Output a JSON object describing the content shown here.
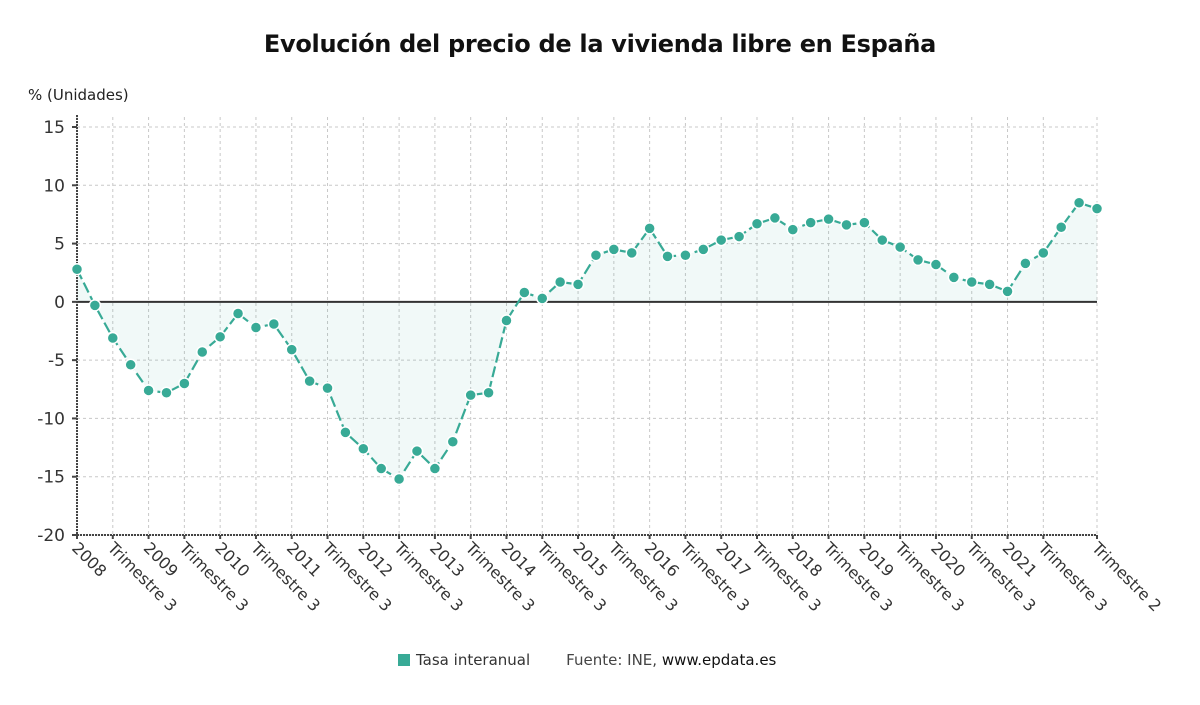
{
  "chart_data": {
    "type": "line",
    "title": "Evolución del precio de la vivienda libre en España",
    "ylabel": "% (Unidades)",
    "xlabel": "",
    "ylim": [
      -20,
      15
    ],
    "yticks": [
      15,
      10,
      5,
      0,
      -5,
      -10,
      -15,
      -20
    ],
    "grid": true,
    "legend_position": "bottom",
    "xtick_labels": [
      "2008",
      "Trimestre 3",
      "2009",
      "Trimestre 3",
      "2010",
      "Trimestre 3",
      "2011",
      "Trimestre 3",
      "2012",
      "Trimestre 3",
      "2013",
      "Trimestre 3",
      "2014",
      "Trimestre 3",
      "2015",
      "Trimestre 3",
      "2016",
      "Trimestre 3",
      "2017",
      "Trimestre 3",
      "2018",
      "Trimestre 3",
      "2019",
      "Trimestre 3",
      "2020",
      "Trimestre 3",
      "2021",
      "Trimestre 3",
      "Trimestre 2"
    ],
    "xtick_quarter_index": [
      0,
      2,
      4,
      6,
      8,
      10,
      12,
      14,
      16,
      18,
      20,
      22,
      24,
      26,
      28,
      30,
      32,
      34,
      36,
      38,
      40,
      42,
      44,
      46,
      48,
      50,
      52,
      54,
      57
    ],
    "x_start": "2008 T1",
    "x_end": "2022 T2",
    "series": [
      {
        "name": "Tasa interanual",
        "color": "#38aa96",
        "values": [
          2.8,
          -0.3,
          -3.1,
          -5.4,
          -7.6,
          -7.8,
          -7.0,
          -4.3,
          -3.0,
          -1.0,
          -2.2,
          -1.9,
          -4.1,
          -6.8,
          -7.4,
          -11.2,
          -12.6,
          -14.3,
          -15.2,
          -12.8,
          -14.3,
          -12.0,
          -8.0,
          -7.8,
          -1.6,
          0.8,
          0.3,
          1.7,
          1.5,
          4.0,
          4.5,
          4.2,
          6.3,
          3.9,
          4.0,
          4.5,
          5.3,
          5.6,
          6.7,
          7.2,
          6.2,
          6.8,
          7.1,
          6.6,
          6.8,
          5.3,
          4.7,
          3.6,
          3.2,
          2.1,
          1.7,
          1.5,
          0.9,
          3.3,
          4.2,
          6.4,
          8.5,
          8.0
        ]
      }
    ]
  },
  "legend": {
    "series_label": "Tasa interanual",
    "swatch_color": "#38aa96",
    "source_prefix": "Fuente: INE,",
    "source_site": "www.epdata.es"
  }
}
